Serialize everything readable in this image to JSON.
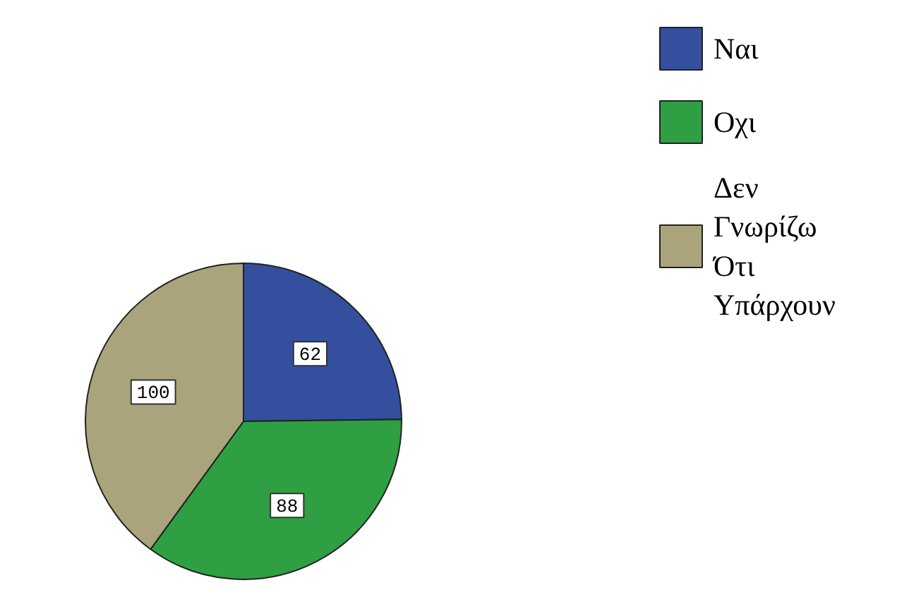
{
  "chart_data": {
    "type": "pie",
    "categories": [
      "Ναι",
      "Οχι",
      "Δεν Γνωρίζω Ότι Υπάρχουν"
    ],
    "values": [
      62,
      88,
      100
    ],
    "colors": [
      "#334f9e",
      "#2ea043",
      "#aaa47c"
    ],
    "data_labels": true,
    "legend": "top right"
  }
}
